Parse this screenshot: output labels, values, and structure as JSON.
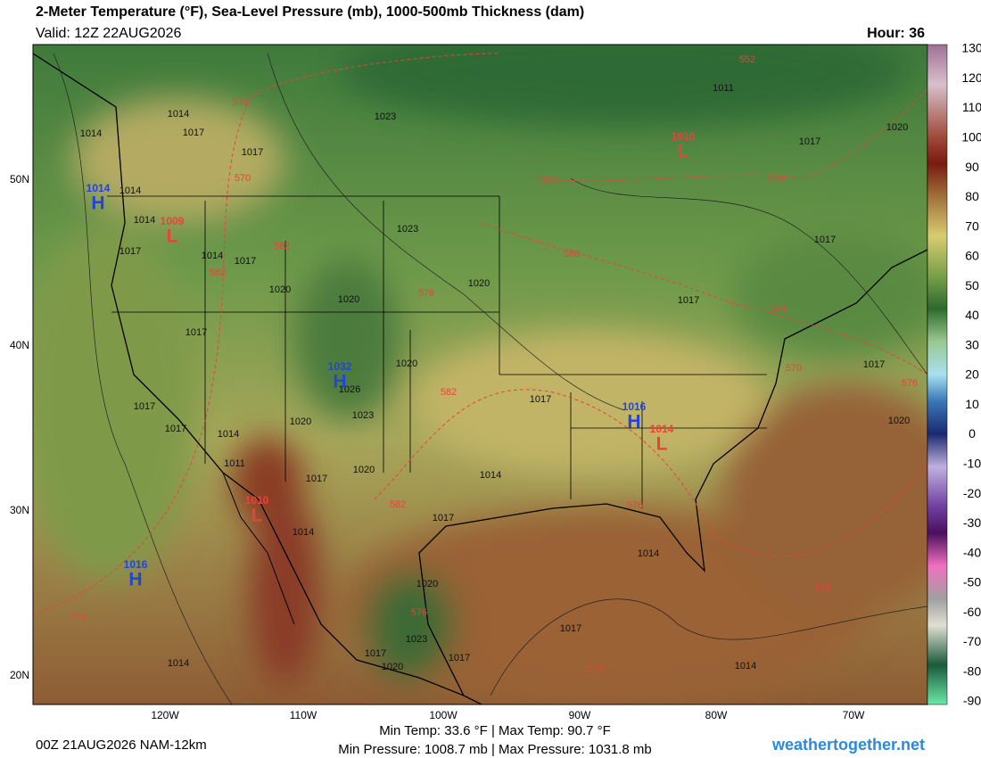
{
  "header": {
    "title": "2-Meter Temperature (°F), Sea-Level Pressure (mb), 1000-500mb Thickness (dam)",
    "valid": "Valid: 12Z 22AUG2026",
    "hour": "Hour: 36"
  },
  "colorbar": {
    "ticks": [
      130,
      120,
      110,
      100,
      90,
      80,
      70,
      60,
      50,
      40,
      30,
      20,
      10,
      0,
      -10,
      -20,
      -30,
      -40,
      -50,
      -60,
      -70,
      -80,
      -90
    ]
  },
  "longitudes": [
    "120W",
    "110W",
    "100W",
    "90W",
    "80W",
    "70W"
  ],
  "latitudes": [
    "50N",
    "40N",
    "30N",
    "20N"
  ],
  "pressure_centers": [
    {
      "kind": "H",
      "value": "1014"
    },
    {
      "kind": "L",
      "value": "1009"
    },
    {
      "kind": "L",
      "value": "1010"
    },
    {
      "kind": "H",
      "value": "1032"
    },
    {
      "kind": "H",
      "value": "1016"
    },
    {
      "kind": "L",
      "value": "1014"
    },
    {
      "kind": "L",
      "value": "1010"
    },
    {
      "kind": "H",
      "value": "1016"
    }
  ],
  "isobar_labels": [
    "1014",
    "1014",
    "1017",
    "1017",
    "1023",
    "1011",
    "1017",
    "1020",
    "1014",
    "1014",
    "1017",
    "1023",
    "1014",
    "1017",
    "1020",
    "1020",
    "1020",
    "1017",
    "1020",
    "1023",
    "1026",
    "1017",
    "1017",
    "1014",
    "1020",
    "1011",
    "1017",
    "1020",
    "1017",
    "1014",
    "1017",
    "1014",
    "1014",
    "1017",
    "1020",
    "1017",
    "1017",
    "1023",
    "1020",
    "1017",
    "1014",
    "1020",
    "1017",
    "1017",
    "1014"
  ],
  "thickness_labels": [
    "570",
    "570",
    "552",
    "552",
    "558",
    "582",
    "582",
    "576",
    "564",
    "570",
    "576",
    "588",
    "582",
    "582",
    "576",
    "576",
    "576",
    "576",
    "576"
  ],
  "footer": {
    "run": "00Z 21AUG2026 NAM-12km",
    "temps": "Min Temp:  33.6 °F | Max Temp:  90.7 °F",
    "pressures": "Min Pressure: 1008.7 mb | Max Pressure: 1031.8 mb",
    "site": "weathertogether.net"
  }
}
